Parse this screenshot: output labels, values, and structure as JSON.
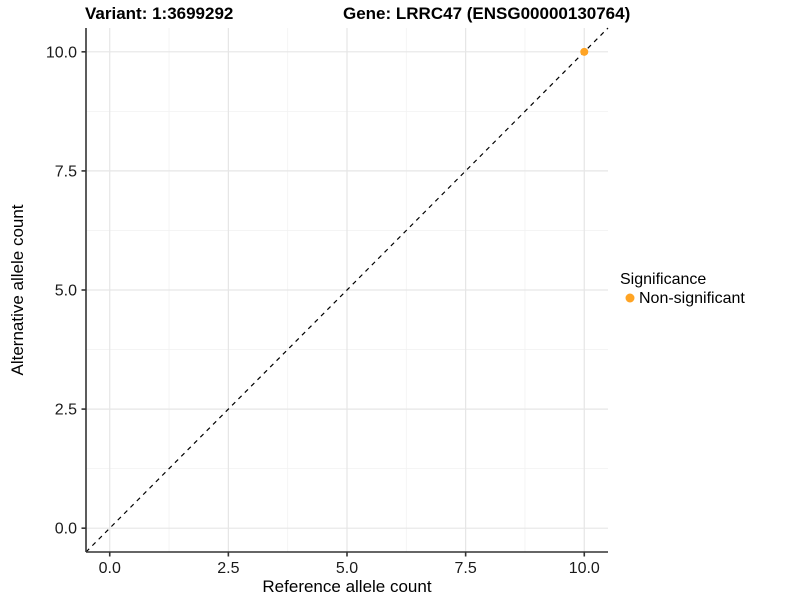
{
  "title": {
    "variant": "Variant: 1:3699292",
    "gene": "Gene: LRRC47 (ENSG00000130764)"
  },
  "axes": {
    "x": {
      "label": "Reference allele count",
      "ticks": [
        "0.0",
        "2.5",
        "5.0",
        "7.5",
        "10.0"
      ],
      "tick_values": [
        0,
        2.5,
        5,
        7.5,
        10
      ],
      "minor_ticks": [
        1.25,
        3.75,
        6.25,
        8.75
      ]
    },
    "y": {
      "label": "Alternative allele count",
      "ticks": [
        "0.0",
        "2.5",
        "5.0",
        "7.5",
        "10.0"
      ],
      "tick_values": [
        0,
        2.5,
        5,
        7.5,
        10
      ],
      "minor_ticks": [
        1.25,
        3.75,
        6.25,
        8.75
      ]
    }
  },
  "legend": {
    "title": "Significance",
    "items": [
      {
        "label": "Non-significant",
        "color": "#FFA424",
        "marker": "circle-icon"
      }
    ]
  },
  "style": {
    "point_color": "#FFA424",
    "axis_line_color": "#333333",
    "grid_major_color": "#e6e6e6",
    "grid_minor_color": "#f2f2f2",
    "reference_line_color": "#000000",
    "background": "#ffffff"
  },
  "chart_data": {
    "type": "scatter",
    "title": "Variant: 1:3699292    Gene: LRRC47 (ENSG00000130764)",
    "xlabel": "Reference allele count",
    "ylabel": "Alternative allele count",
    "xlim": [
      -0.5,
      10.5
    ],
    "ylim": [
      -0.5,
      10.5
    ],
    "x_ticks": [
      0,
      2.5,
      5,
      7.5,
      10
    ],
    "y_ticks": [
      0,
      2.5,
      5,
      7.5,
      10
    ],
    "grid": "on",
    "legend_position": "right",
    "series": [
      {
        "name": "Non-significant",
        "color": "#FFA424",
        "points": [
          {
            "x": 10,
            "y": 10
          }
        ]
      }
    ],
    "reference_line": {
      "kind": "abline",
      "slope": 1,
      "intercept": 0,
      "style": "dashed",
      "color": "#000000"
    }
  }
}
